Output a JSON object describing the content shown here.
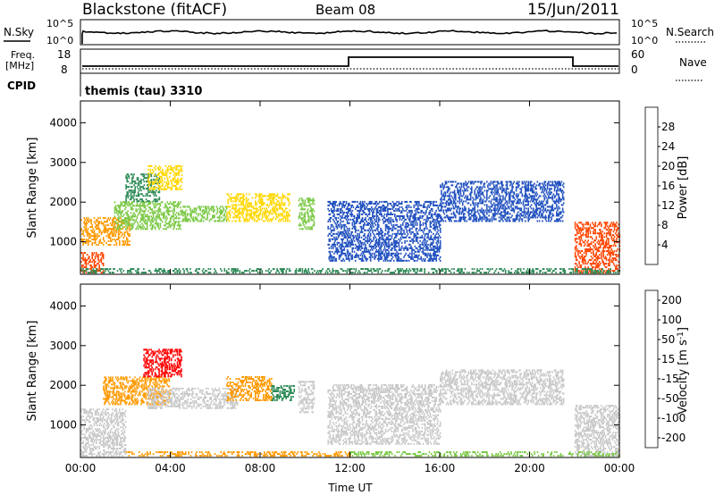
{
  "header": {
    "station": "Blackstone (fitACF)",
    "beam": "Beam 08",
    "date": "15/Jun/2011"
  },
  "noise_panel": {
    "left_label": "N.Sky",
    "right_label": "N.Search",
    "tick_high": "10^5",
    "tick_low": "10^0"
  },
  "freq_panel": {
    "left_label_1": "Freq.",
    "left_label_2": "[MHz]",
    "right_label": "Nave",
    "left_ticks": [
      "18",
      "8"
    ],
    "right_ticks": [
      "60",
      "0"
    ]
  },
  "cpid_panel": {
    "label": "CPID",
    "program": "themis (tau) 3310"
  },
  "colors": {
    "power": [
      "#0000ff",
      "#1f4fbf",
      "#2e8b57",
      "#79c843",
      "#ffd700",
      "#ff9a00",
      "#ff4500",
      "#ff0000"
    ],
    "velocity": [
      "#0000cd",
      "#2e8b57",
      "#79c843",
      "#c8c8c8",
      "#ff9a00",
      "#ff6000",
      "#ff0000"
    ]
  },
  "chart_data": [
    {
      "type": "heatmap",
      "ylabel": "Slant Range [km]",
      "xlabel": "",
      "x_ticks": [
        "00:00",
        "04:00",
        "08:00",
        "12:00",
        "16:00",
        "20:00",
        "00:00"
      ],
      "xlim_hours": [
        0,
        24
      ],
      "y_ticks": [
        1000,
        2000,
        3000,
        4000
      ],
      "ylim": [
        180,
        4550
      ],
      "colorbar": {
        "label": "Power [dB]",
        "ticks": [
          "4",
          "8",
          "12",
          "16",
          "20",
          "24",
          "28"
        ],
        "range": [
          0,
          30
        ]
      },
      "regions": [
        {
          "t": [
            0.0,
            1.0
          ],
          "r": [
            200,
            700
          ],
          "c": "#ff4500"
        },
        {
          "t": [
            0.0,
            2.2
          ],
          "r": [
            900,
            1600
          ],
          "c": "#ff9a00"
        },
        {
          "t": [
            1.5,
            4.5
          ],
          "r": [
            1300,
            2000
          ],
          "c": "#79c843"
        },
        {
          "t": [
            2.0,
            3.5
          ],
          "r": [
            2000,
            2700
          ],
          "c": "#2e8b57"
        },
        {
          "t": [
            3.0,
            4.5
          ],
          "r": [
            2300,
            2900
          ],
          "c": "#ffd700"
        },
        {
          "t": [
            4.5,
            6.5
          ],
          "r": [
            1500,
            1900
          ],
          "c": "#79c843"
        },
        {
          "t": [
            6.5,
            9.3
          ],
          "r": [
            1500,
            2200
          ],
          "c": "#ffd700"
        },
        {
          "t": [
            9.7,
            10.4
          ],
          "r": [
            1300,
            2100
          ],
          "c": "#79c843"
        },
        {
          "t": [
            11.0,
            16.0
          ],
          "r": [
            500,
            2000
          ],
          "c": "#1f4fbf"
        },
        {
          "t": [
            16.0,
            21.5
          ],
          "r": [
            1500,
            2500
          ],
          "c": "#1f4fbf"
        },
        {
          "t": [
            22.0,
            24.0
          ],
          "r": [
            200,
            1500
          ],
          "c": "#ff4500"
        },
        {
          "t": [
            0.0,
            24.0
          ],
          "r": [
            200,
            300
          ],
          "c": "#2e8b57"
        }
      ]
    },
    {
      "type": "heatmap",
      "ylabel": "Slant Range [km]",
      "xlabel": "Time UT",
      "x_ticks": [
        "00:00",
        "04:00",
        "08:00",
        "12:00",
        "16:00",
        "20:00",
        "00:00"
      ],
      "xlim_hours": [
        0,
        24
      ],
      "y_ticks": [
        1000,
        2000,
        3000,
        4000
      ],
      "ylim": [
        180,
        4550
      ],
      "colorbar": {
        "label": "Velocity [m s^-1]",
        "ticks": [
          "200",
          "100",
          "50",
          "15",
          "-15",
          "-50",
          "-100",
          "-200"
        ],
        "range": [
          -250,
          250
        ]
      },
      "regions": [
        {
          "t": [
            0.0,
            2.0
          ],
          "r": [
            200,
            1400
          ],
          "c": "#c8c8c8"
        },
        {
          "t": [
            1.0,
            4.0
          ],
          "r": [
            1500,
            2200
          ],
          "c": "#ff9a00"
        },
        {
          "t": [
            2.8,
            4.5
          ],
          "r": [
            2200,
            2900
          ],
          "c": "#ff0000"
        },
        {
          "t": [
            3.0,
            7.0
          ],
          "r": [
            1400,
            1900
          ],
          "c": "#c8c8c8"
        },
        {
          "t": [
            6.5,
            8.5
          ],
          "r": [
            1600,
            2200
          ],
          "c": "#ff9a00"
        },
        {
          "t": [
            8.5,
            9.5
          ],
          "r": [
            1600,
            2000
          ],
          "c": "#2e8b57"
        },
        {
          "t": [
            9.7,
            10.4
          ],
          "r": [
            1300,
            2100
          ],
          "c": "#c8c8c8"
        },
        {
          "t": [
            11.0,
            16.0
          ],
          "r": [
            500,
            2000
          ],
          "c": "#c8c8c8"
        },
        {
          "t": [
            16.0,
            21.5
          ],
          "r": [
            1500,
            2400
          ],
          "c": "#c8c8c8"
        },
        {
          "t": [
            22.0,
            24.0
          ],
          "r": [
            200,
            1500
          ],
          "c": "#c8c8c8"
        },
        {
          "t": [
            2.0,
            12.0
          ],
          "r": [
            200,
            300
          ],
          "c": "#ff9a00"
        },
        {
          "t": [
            12.0,
            24.0
          ],
          "r": [
            200,
            300
          ],
          "c": "#79c843"
        }
      ]
    }
  ]
}
